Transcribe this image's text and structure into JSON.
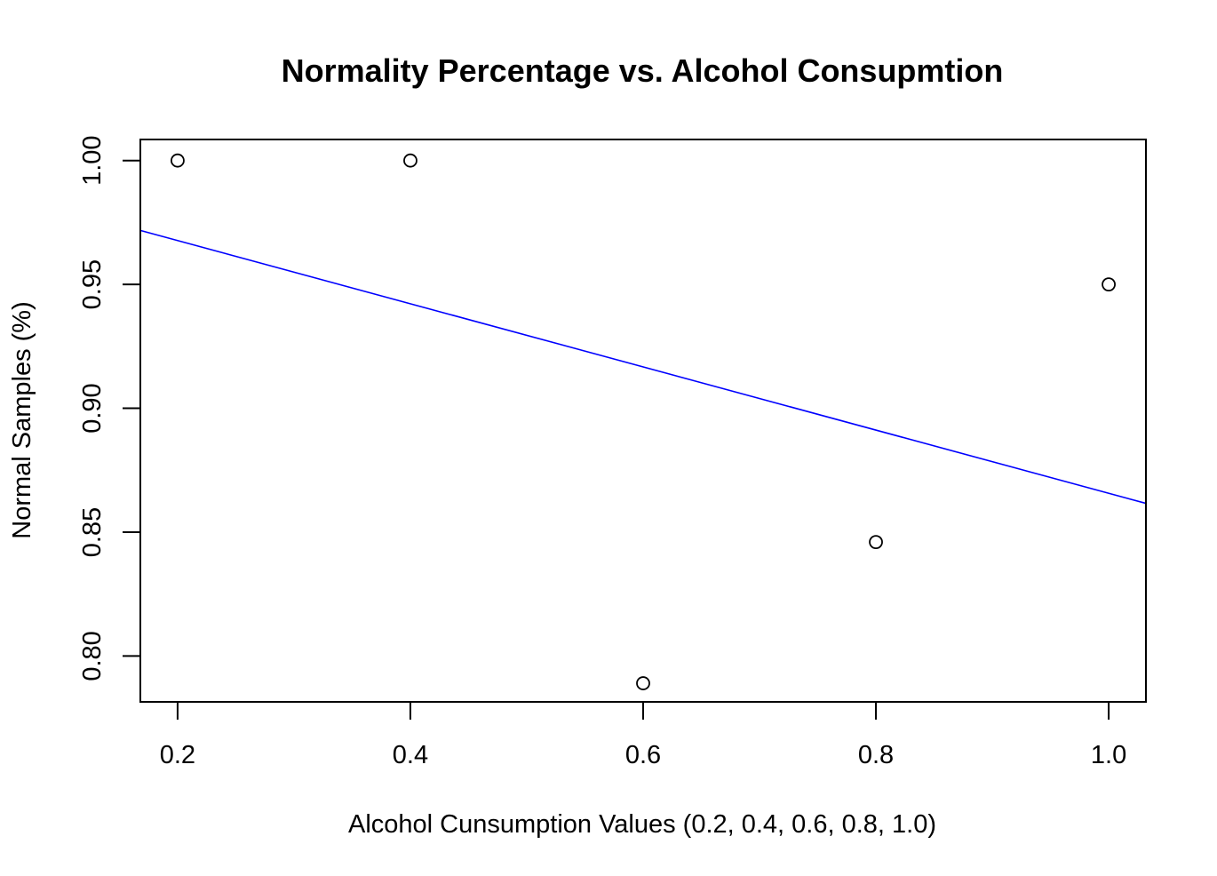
{
  "chart_data": {
    "type": "scatter",
    "title": "Normality Percentage vs. Alcohol Consupmtion",
    "xlabel": "Alcohol Cunsumption Values (0.2, 0.4, 0.6, 0.8, 1.0)",
    "ylabel": "Normal Samples (%)",
    "xlim": [
      0.168,
      1.032
    ],
    "ylim": [
      0.7815,
      1.0085
    ],
    "x_ticks": [
      "0.2",
      "0.4",
      "0.6",
      "0.8",
      "1.0"
    ],
    "y_ticks": [
      "0.80",
      "0.85",
      "0.90",
      "0.95",
      "1.00"
    ],
    "grid": false,
    "points": {
      "x": [
        0.2,
        0.4,
        0.6,
        0.8,
        1.0
      ],
      "y": [
        1.0,
        1.0,
        0.789,
        0.846,
        0.95
      ],
      "marker": "open-circle",
      "color": "#000000"
    },
    "regression_line": {
      "slope": -0.1275,
      "intercept": 0.9932,
      "color": "#0000ff"
    }
  }
}
